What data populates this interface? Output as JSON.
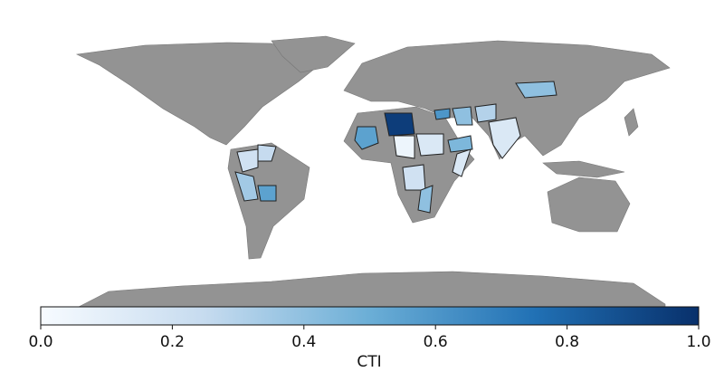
{
  "chart_data": {
    "type": "choropleth",
    "values": [
      0.95,
      0.55,
      0.4,
      0.15,
      0.2,
      0.25,
      0.35,
      0.55,
      0.15,
      0.05,
      0.45,
      0.4,
      0.3,
      0.15,
      0.2,
      0.4,
      0.6
    ],
    "colormap": [
      "#f7fbff",
      "#c6dbef",
      "#6baed6",
      "#2171b5",
      "#08306b"
    ],
    "clim": [
      0,
      1
    ],
    "colorbar_label": "CTI",
    "colorbar_ticks": [
      {
        "value": 0,
        "label": "0.0"
      },
      {
        "value": 0.2,
        "label": "0.2"
      },
      {
        "value": 0.4,
        "label": "0.4"
      },
      {
        "value": 0.6,
        "label": "0.6"
      },
      {
        "value": 0.8,
        "label": "0.8"
      },
      {
        "value": 1,
        "label": "1.0"
      }
    ]
  }
}
